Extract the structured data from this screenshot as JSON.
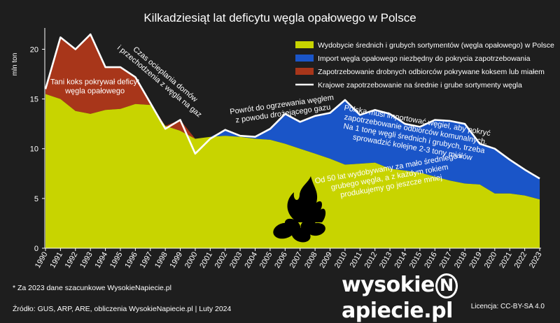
{
  "chart_data": {
    "type": "area",
    "title": "Kilkadziesiąt lat deficytu węgla opałowego w Polsce",
    "ylabel": "mln ton",
    "ylim": [
      0,
      22
    ],
    "yticks": [
      0,
      5,
      10,
      15,
      20
    ],
    "x": [
      "1990",
      "1991",
      "1992",
      "1993",
      "1994",
      "1995",
      "1996",
      "1997",
      "1998",
      "1999",
      "2000",
      "2001",
      "2002",
      "2003",
      "2004",
      "2005",
      "2006",
      "2007",
      "2008",
      "2009",
      "2010",
      "2011",
      "2012",
      "2013",
      "2014",
      "2015",
      "2016",
      "2017",
      "2018",
      "2019",
      "2020",
      "2021",
      "2022",
      "2023"
    ],
    "series": [
      {
        "name": "Wydobycie średnich i grubych sortymentów (węgla opałowego) w Polsce",
        "kind": "area-base",
        "color": "#c8d400",
        "values": [
          15.5,
          15.0,
          13.8,
          13.5,
          13.9,
          14.0,
          14.5,
          14.4,
          12.3,
          11.8,
          11.0,
          11.2,
          11.3,
          11.2,
          11.0,
          10.9,
          10.5,
          10.0,
          9.5,
          9.0,
          8.4,
          8.5,
          8.6,
          8.0,
          7.8,
          7.6,
          7.2,
          6.8,
          6.5,
          6.4,
          5.5,
          5.5,
          5.3,
          4.9
        ]
      },
      {
        "name": "Import węgla opałowego niezbędny do pokrycia zapotrzebowania",
        "kind": "area-upper",
        "color": "#1a55c8",
        "values": [
          null,
          null,
          null,
          null,
          null,
          null,
          null,
          null,
          null,
          null,
          null,
          11.2,
          11.9,
          11.3,
          11.2,
          12.0,
          13.5,
          12.7,
          13.3,
          13.6,
          14.9,
          13.4,
          13.9,
          13.5,
          12.5,
          12.2,
          12.9,
          12.8,
          12.5,
          10.5,
          10.0,
          8.9,
          7.9,
          7.0
        ]
      },
      {
        "name": "Zapotrzebowanie drobnych odbiorców pokrywane koksem lub miałem",
        "kind": "area-upper",
        "color": "#a8361a",
        "values": [
          16.0,
          21.2,
          20.0,
          21.5,
          18.2,
          18.2,
          17.2,
          14.6,
          12.3,
          12.9,
          11.0,
          null,
          null,
          null,
          null,
          null,
          null,
          null,
          null,
          null,
          null,
          null,
          null,
          null,
          null,
          null,
          null,
          null,
          null,
          null,
          null,
          null,
          null,
          null
        ]
      },
      {
        "name": "Krajowe zapotrzebowanie na średnie i grube sortymenty węgla",
        "kind": "line",
        "color": "#ffffff",
        "values": [
          16.0,
          21.2,
          20.0,
          21.5,
          18.2,
          18.2,
          17.2,
          14.6,
          12.0,
          12.9,
          9.5,
          11.0,
          11.9,
          11.3,
          11.2,
          12.0,
          13.5,
          12.7,
          13.3,
          13.6,
          14.9,
          13.4,
          13.9,
          13.5,
          12.5,
          12.2,
          12.9,
          12.8,
          12.5,
          10.5,
          10.0,
          8.9,
          7.9,
          7.0
        ]
      }
    ],
    "annotations": [
      {
        "text": [
          "Tani koks pokrywał deficyt",
          "węgla opałowego"
        ],
        "x": 1993.3,
        "y": 16.5,
        "rotate": 0,
        "anchor": "middle"
      },
      {
        "text": [
          "Czas ocieplania domów",
          "i przechodzenia z węgla na gaz"
        ],
        "x": 1997.9,
        "y": 17.3,
        "rotate": 40,
        "anchor": "middle"
      },
      {
        "text": [
          "Powrót do ogrzewania węglem",
          "z powodu drożejącego gazu"
        ],
        "x": 2005.8,
        "y": 14.2,
        "rotate": -8,
        "anchor": "middle"
      },
      {
        "text": [
          "Polska musi importować węgiel, aby pokryć",
          "zapotrzebowanie odbiorców komunalnych.",
          "Na 1 tonę węgli średnich i grubych, trzeba",
          "sprowadzić kolejne 2-3 tony miałów"
        ],
        "x": 2014.8,
        "y": 12.6,
        "rotate": 10,
        "anchor": "middle"
      },
      {
        "text": [
          "Od 50 lat wydobywamy za mało średniego i",
          "grubego węgla, a z każdym rokiem",
          "produkujemy go jeszcze mniej"
        ],
        "x": 2012.9,
        "y": 7.8,
        "rotate": -10,
        "anchor": "middle"
      }
    ]
  },
  "footnote": "* Za 2023 dane szacunkowe WysokieNapiecie.pl",
  "source": "Źródło: GUS, ARP, ARE, obliczenia WysokieNapiecie.pl  |  Luty 2024",
  "brand": {
    "pre": "wysokie",
    "mid": "N",
    "post": "apiecie.pl"
  },
  "license": "Licencja: CC-BY-SA 4.0",
  "colors": {
    "background": "#1e1e1e",
    "axis": "#ffffff"
  }
}
